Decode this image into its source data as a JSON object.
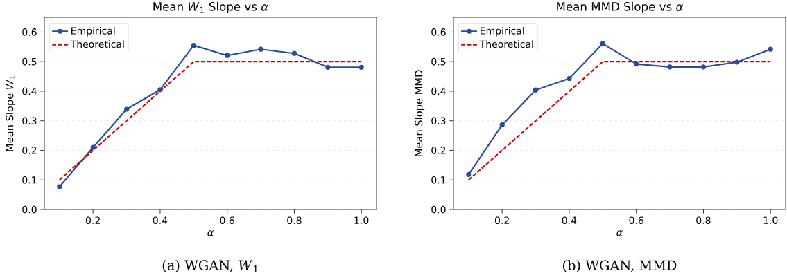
{
  "chart_data": [
    {
      "type": "line",
      "title": "Mean *W*$_{1}$ Slope vs *α*",
      "xlabel": "α",
      "ylabel": "Mean Slope *W*$_{1}$",
      "x": [
        0.1,
        0.2,
        0.3,
        0.4,
        0.5,
        0.6,
        0.7,
        0.8,
        0.9,
        1.0
      ],
      "series": [
        {
          "name": "Empirical",
          "color": "#2a4b9b",
          "marker": "circle",
          "line_style": "solid",
          "values": [
            0.077,
            0.21,
            0.339,
            0.405,
            0.555,
            0.521,
            0.542,
            0.528,
            0.481,
            0.481
          ]
        },
        {
          "name": "Theoretical",
          "color": "#d40000",
          "marker": "none",
          "line_style": "dashed",
          "values": [
            0.1,
            0.2,
            0.3,
            0.4,
            0.5,
            0.5,
            0.5,
            0.5,
            0.5,
            0.5
          ]
        }
      ],
      "xlim": [
        0.055,
        1.045
      ],
      "ylim": [
        0,
        0.65
      ],
      "xticks": [
        {
          "value": 0.2,
          "label": "0.2"
        },
        {
          "value": 0.4,
          "label": "0.4"
        },
        {
          "value": 0.6,
          "label": "0.6"
        },
        {
          "value": 0.8,
          "label": "0.8"
        },
        {
          "value": 1.0,
          "label": "1.0"
        }
      ],
      "yticks": [
        {
          "value": 0,
          "label": "0.0"
        },
        {
          "value": 0.1,
          "label": "0.1"
        },
        {
          "value": 0.2,
          "label": "0.2"
        },
        {
          "value": 0.3,
          "label": "0.3"
        },
        {
          "value": 0.4,
          "label": "0.4"
        },
        {
          "value": 0.5,
          "label": "0.5"
        },
        {
          "value": 0.6,
          "label": "0.6"
        }
      ],
      "grid": "y",
      "legend": "top left",
      "annotations": [
        "(a) WGAN, *W*$_{1}$"
      ]
    },
    {
      "type": "line",
      "title": "Mean MMD Slope vs *α*",
      "xlabel": "α",
      "ylabel": "Mean Slope MMD",
      "x": [
        0.1,
        0.2,
        0.3,
        0.4,
        0.5,
        0.6,
        0.7,
        0.8,
        0.9,
        1.0
      ],
      "series": [
        {
          "name": "Empirical",
          "color": "#2a4b9b",
          "marker": "circle",
          "line_style": "solid",
          "values": [
            0.118,
            0.286,
            0.404,
            0.443,
            0.561,
            0.492,
            0.482,
            0.482,
            0.498,
            0.542
          ]
        },
        {
          "name": "Theoretical",
          "color": "#d40000",
          "marker": "none",
          "line_style": "dashed",
          "values": [
            0.1,
            0.2,
            0.3,
            0.4,
            0.5,
            0.5,
            0.5,
            0.5,
            0.5,
            0.5
          ]
        }
      ],
      "xlim": [
        0.055,
        1.045
      ],
      "ylim": [
        0,
        0.65
      ],
      "xticks": [
        {
          "value": 0.2,
          "label": "0.2"
        },
        {
          "value": 0.4,
          "label": "0.4"
        },
        {
          "value": 0.6,
          "label": "0.6"
        },
        {
          "value": 0.8,
          "label": "0.8"
        },
        {
          "value": 1.0,
          "label": "1.0"
        }
      ],
      "yticks": [
        {
          "value": 0,
          "label": "0.0"
        },
        {
          "value": 0.1,
          "label": "0.1"
        },
        {
          "value": 0.2,
          "label": "0.2"
        },
        {
          "value": 0.3,
          "label": "0.3"
        },
        {
          "value": 0.4,
          "label": "0.4"
        },
        {
          "value": 0.5,
          "label": "0.5"
        },
        {
          "value": 0.6,
          "label": "0.6"
        }
      ],
      "grid": "y",
      "legend": "top left",
      "annotations": [
        "(b) WGAN, MMD"
      ]
    }
  ]
}
